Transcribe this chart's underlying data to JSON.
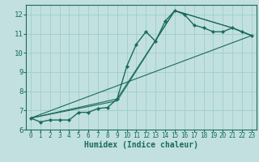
{
  "xlabel": "Humidex (Indice chaleur)",
  "bg_color": "#c2e0e0",
  "grid_color": "#9ecece",
  "line_color": "#1a6b5a",
  "xlim": [
    -0.5,
    23.5
  ],
  "ylim": [
    6.0,
    12.5
  ],
  "yticks": [
    6,
    7,
    8,
    9,
    10,
    11,
    12
  ],
  "xticks": [
    0,
    1,
    2,
    3,
    4,
    5,
    6,
    7,
    8,
    9,
    10,
    11,
    12,
    13,
    14,
    15,
    16,
    17,
    18,
    19,
    20,
    21,
    22,
    23
  ],
  "main_series": {
    "x": [
      0,
      1,
      2,
      3,
      4,
      5,
      6,
      7,
      8,
      9,
      10,
      11,
      12,
      13,
      14,
      15,
      16,
      17,
      18,
      19,
      20,
      21,
      22,
      23
    ],
    "y": [
      6.6,
      6.4,
      6.5,
      6.5,
      6.5,
      6.9,
      6.9,
      7.1,
      7.15,
      7.6,
      9.3,
      10.45,
      11.1,
      10.6,
      11.65,
      12.2,
      12.0,
      11.45,
      11.3,
      11.1,
      11.1,
      11.3,
      11.1,
      10.9
    ]
  },
  "ref_lines": [
    {
      "x": [
        0,
        9,
        15,
        21,
        23
      ],
      "y": [
        6.6,
        7.6,
        12.2,
        11.3,
        10.9
      ]
    },
    {
      "x": [
        0,
        9,
        15,
        21,
        23
      ],
      "y": [
        6.6,
        7.5,
        12.2,
        11.3,
        10.9
      ]
    },
    {
      "x": [
        0,
        23
      ],
      "y": [
        6.6,
        10.9
      ]
    }
  ]
}
